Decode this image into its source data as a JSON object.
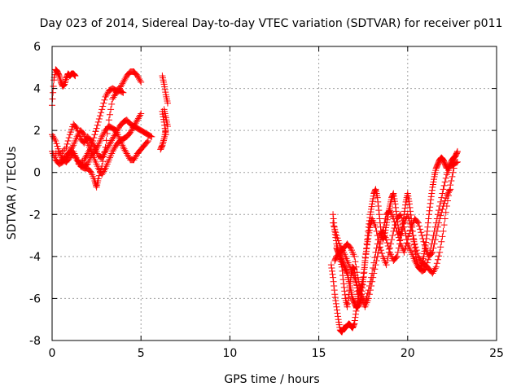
{
  "chart_data": {
    "type": "scatter",
    "title": "Day 023 of 2014, Sidereal Day-to-day VTEC variation (SDTVAR) for receiver p011",
    "xlabel": "GPS time / hours",
    "ylabel": "SDTVAR / TECUs",
    "xlim": [
      0,
      25
    ],
    "ylim": [
      -8,
      6
    ],
    "xticks": [
      "0",
      "5",
      "10",
      "15",
      "20",
      "25"
    ],
    "yticks": [
      "-8",
      "-6",
      "-4",
      "-2",
      "0",
      "2",
      "4",
      "6"
    ],
    "grid": true,
    "marker": "+",
    "color": "#ff0000",
    "series": [
      {
        "x": [
          0.0,
          0.1,
          0.2,
          0.3,
          0.4,
          0.5,
          0.6,
          0.7,
          0.8,
          0.9,
          1.0,
          1.1,
          1.2,
          1.3,
          0.0,
          0.2,
          0.4,
          0.6,
          0.8,
          1.0,
          1.2,
          1.4,
          1.6,
          1.8,
          2.0,
          2.2,
          2.4,
          2.6,
          2.8,
          3.0,
          3.2,
          3.4,
          3.6,
          3.8,
          4.0,
          4.2,
          4.4,
          4.6,
          4.8,
          5.0,
          0.0,
          0.2,
          0.4,
          0.6,
          0.8,
          1.0,
          1.2,
          1.4,
          1.6,
          1.8,
          2.0,
          2.2,
          2.4,
          2.5,
          2.6,
          2.8,
          3.0,
          3.2,
          3.4,
          3.6,
          3.8,
          4.0,
          0.2,
          0.5,
          0.8,
          1.0,
          1.2,
          1.4,
          1.6,
          1.8,
          2.0,
          2.2,
          2.4,
          2.6,
          2.8,
          3.0,
          3.2,
          3.4,
          3.6,
          3.8,
          4.0,
          4.2,
          4.4,
          4.6,
          4.8,
          5.0,
          5.2,
          5.4,
          5.6,
          0.5,
          0.8,
          1.0,
          1.2,
          1.4,
          1.6,
          1.8,
          2.0,
          2.2,
          2.4,
          2.6,
          2.8,
          3.0,
          3.2,
          3.4,
          3.6,
          3.8,
          4.0,
          4.2,
          4.4,
          4.6,
          4.8,
          5.0,
          5.2,
          5.4,
          1.5,
          1.8,
          2.0,
          2.2,
          2.4,
          2.6,
          2.8,
          3.0,
          3.2,
          3.4,
          3.6,
          3.8,
          4.0,
          4.2,
          4.4,
          4.6,
          4.8,
          5.0,
          6.2,
          6.3,
          6.4,
          6.5,
          6.3,
          6.4,
          6.5,
          6.2,
          6.3,
          6.4,
          6.1,
          6.2,
          6.3,
          6.4,
          15.8,
          15.9,
          16.0,
          16.1,
          16.2,
          16.3,
          16.4,
          16.5,
          16.6,
          16.7,
          16.8,
          16.9,
          17.0,
          17.1,
          17.2,
          17.3,
          17.4,
          17.5,
          17.6,
          17.7,
          17.8,
          17.9,
          18.0,
          18.1,
          18.2,
          18.3,
          18.4,
          18.5,
          18.6,
          18.7,
          18.8,
          18.9,
          19.0,
          19.1,
          19.2,
          19.3,
          19.4,
          19.5,
          19.6,
          19.7,
          19.8,
          19.9,
          20.0,
          20.1,
          20.2,
          20.3,
          20.4,
          20.5,
          20.6,
          20.7,
          20.8,
          20.9,
          21.0,
          21.1,
          21.2,
          21.3,
          21.4,
          21.5,
          21.6,
          21.7,
          21.8,
          21.9,
          22.0,
          22.1,
          22.2,
          22.3,
          22.4,
          22.5,
          22.6,
          22.7,
          22.8,
          15.7,
          15.8,
          15.9,
          16.0,
          16.1,
          16.2,
          16.3,
          16.4,
          16.5,
          16.6,
          16.7,
          16.8,
          16.9,
          17.0,
          17.1,
          17.2,
          17.3,
          17.4,
          17.5,
          17.6,
          17.7,
          17.8,
          17.9,
          18.0,
          18.2,
          18.4,
          18.6,
          18.8,
          19.0,
          19.2,
          19.4,
          19.6,
          19.8,
          20.0,
          20.2,
          20.4,
          20.6,
          20.8,
          21.0,
          21.2,
          21.4,
          21.6,
          21.8,
          22.0,
          22.2,
          22.4,
          22.6,
          22.8,
          15.9,
          16.0,
          16.2,
          16.4,
          16.6,
          16.8,
          17.0,
          17.2,
          17.4,
          17.6,
          17.8,
          18.0,
          18.2,
          18.4,
          18.6,
          18.8,
          19.0,
          19.2,
          19.4,
          19.6,
          19.8,
          20.0,
          20.2,
          20.4,
          20.6,
          20.8,
          21.0,
          21.2,
          21.4,
          21.6,
          21.8,
          22.0,
          22.2,
          22.4,
          22.6,
          15.8,
          16.0,
          16.2,
          16.4,
          16.6,
          16.8,
          17.0,
          17.2,
          17.4,
          17.6,
          17.8,
          18.0,
          18.2,
          18.4,
          18.6,
          18.8,
          19.0,
          19.2,
          19.4,
          19.6,
          19.8,
          20.0,
          20.2,
          20.4,
          20.6,
          20.8,
          21.0,
          21.2,
          21.4,
          21.6,
          21.8,
          22.0,
          22.2,
          22.4,
          16.0,
          16.1,
          16.2,
          16.3,
          16.4,
          16.5,
          16.6,
          16.7,
          16.8,
          16.9,
          17.0,
          17.1,
          17.2,
          17.3,
          17.4
        ],
        "y": [
          3.2,
          4.4,
          4.9,
          4.8,
          4.6,
          4.3,
          4.1,
          4.2,
          4.5,
          4.7,
          4.6,
          4.7,
          4.7,
          4.6,
          1.0,
          0.6,
          0.4,
          0.5,
          0.7,
          1.0,
          1.3,
          1.7,
          2.0,
          1.8,
          1.4,
          1.0,
          0.6,
          0.2,
          -0.1,
          0.2,
          0.6,
          1.0,
          1.3,
          1.5,
          1.6,
          1.7,
          1.9,
          2.2,
          2.5,
          2.8,
          1.8,
          1.5,
          1.0,
          0.6,
          0.5,
          0.7,
          1.0,
          0.6,
          0.3,
          0.2,
          0.2,
          0.0,
          -0.4,
          -0.7,
          -0.3,
          0.3,
          1.2,
          2.5,
          3.5,
          3.8,
          3.9,
          3.8,
          0.9,
          0.9,
          1.2,
          1.8,
          2.3,
          2.1,
          1.6,
          1.4,
          1.7,
          1.5,
          1.2,
          0.8,
          0.7,
          1.0,
          1.3,
          1.6,
          1.9,
          2.2,
          2.4,
          2.5,
          2.3,
          2.2,
          2.1,
          2.0,
          1.9,
          1.8,
          1.7,
          0.6,
          0.8,
          1.0,
          0.9,
          0.6,
          0.4,
          0.3,
          0.4,
          0.8,
          1.0,
          1.3,
          1.7,
          2.0,
          2.2,
          2.1,
          2.0,
          1.6,
          1.2,
          0.9,
          0.6,
          0.6,
          0.9,
          1.1,
          1.3,
          1.5,
          0.4,
          0.6,
          0.9,
          1.2,
          1.8,
          2.4,
          3.0,
          3.6,
          3.9,
          4.0,
          3.9,
          4.0,
          4.3,
          4.6,
          4.8,
          4.8,
          4.6,
          4.3,
          4.6,
          4.2,
          3.7,
          3.3,
          3.0,
          2.6,
          2.2,
          2.9,
          2.4,
          1.8,
          1.1,
          1.3,
          1.6,
          2.0,
          -2.0,
          -2.8,
          -3.4,
          -3.8,
          -4.0,
          -4.5,
          -5.3,
          -6.0,
          -6.4,
          -5.8,
          -5.0,
          -4.5,
          -4.6,
          -5.2,
          -5.8,
          -6.2,
          -5.8,
          -5.2,
          -4.3,
          -3.4,
          -2.6,
          -2.0,
          -1.5,
          -1.0,
          -0.8,
          -1.2,
          -2.0,
          -2.8,
          -3.2,
          -3.0,
          -2.5,
          -2.0,
          -1.6,
          -1.2,
          -1.0,
          -1.5,
          -2.2,
          -2.8,
          -3.0,
          -2.6,
          -2.0,
          -1.4,
          -1.0,
          -1.5,
          -2.2,
          -3.0,
          -3.6,
          -4.2,
          -4.5,
          -4.6,
          -4.4,
          -4.0,
          -3.5,
          -2.8,
          -2.0,
          -1.3,
          -0.7,
          -0.2,
          0.2,
          0.4,
          0.6,
          0.7,
          0.6,
          0.4,
          0.2,
          0.2,
          0.4,
          0.6,
          0.7,
          0.8,
          1.0,
          -4.4,
          -5.0,
          -5.8,
          -6.4,
          -7.0,
          -7.5,
          -7.6,
          -7.4,
          -7.4,
          -7.3,
          -7.2,
          -7.3,
          -7.4,
          -7.2,
          -6.6,
          -6.0,
          -5.6,
          -5.4,
          -5.0,
          -4.2,
          -3.6,
          -3.0,
          -2.5,
          -2.2,
          -2.6,
          -3.4,
          -4.0,
          -4.4,
          -3.6,
          -2.8,
          -2.2,
          -2.0,
          -2.6,
          -3.4,
          -3.8,
          -4.2,
          -4.5,
          -4.7,
          -4.6,
          -4.0,
          -3.2,
          -2.4,
          -1.6,
          -0.8,
          -0.1,
          0.3,
          0.4,
          0.5,
          -4.2,
          -4.0,
          -3.8,
          -3.6,
          -3.4,
          -3.6,
          -4.0,
          -5.0,
          -5.8,
          -6.2,
          -5.6,
          -4.8,
          -3.8,
          -3.0,
          -2.8,
          -3.2,
          -3.8,
          -4.2,
          -4.0,
          -3.2,
          -2.4,
          -2.0,
          -2.6,
          -3.4,
          -4.0,
          -4.3,
          -4.4,
          -4.6,
          -4.8,
          -4.5,
          -3.8,
          -2.8,
          -1.6,
          -0.6,
          0.2,
          -2.4,
          -3.0,
          -3.5,
          -3.8,
          -4.2,
          -4.6,
          -5.0,
          -5.5,
          -6.0,
          -6.4,
          -6.0,
          -5.2,
          -4.4,
          -3.6,
          -2.8,
          -2.0,
          -1.8,
          -2.2,
          -2.8,
          -3.4,
          -3.8,
          -3.2,
          -2.6,
          -2.2,
          -2.4,
          -3.0,
          -3.6,
          -4.0,
          -3.8,
          -3.0,
          -2.2,
          -1.6,
          -1.1,
          -0.8,
          -3.6,
          -3.8,
          -4.0,
          -4.2,
          -4.4,
          -4.6,
          -4.8,
          -5.2,
          -5.6,
          -6.0,
          -6.2,
          -6.4,
          -6.4,
          -6.2,
          -6.0
        ]
      }
    ]
  }
}
